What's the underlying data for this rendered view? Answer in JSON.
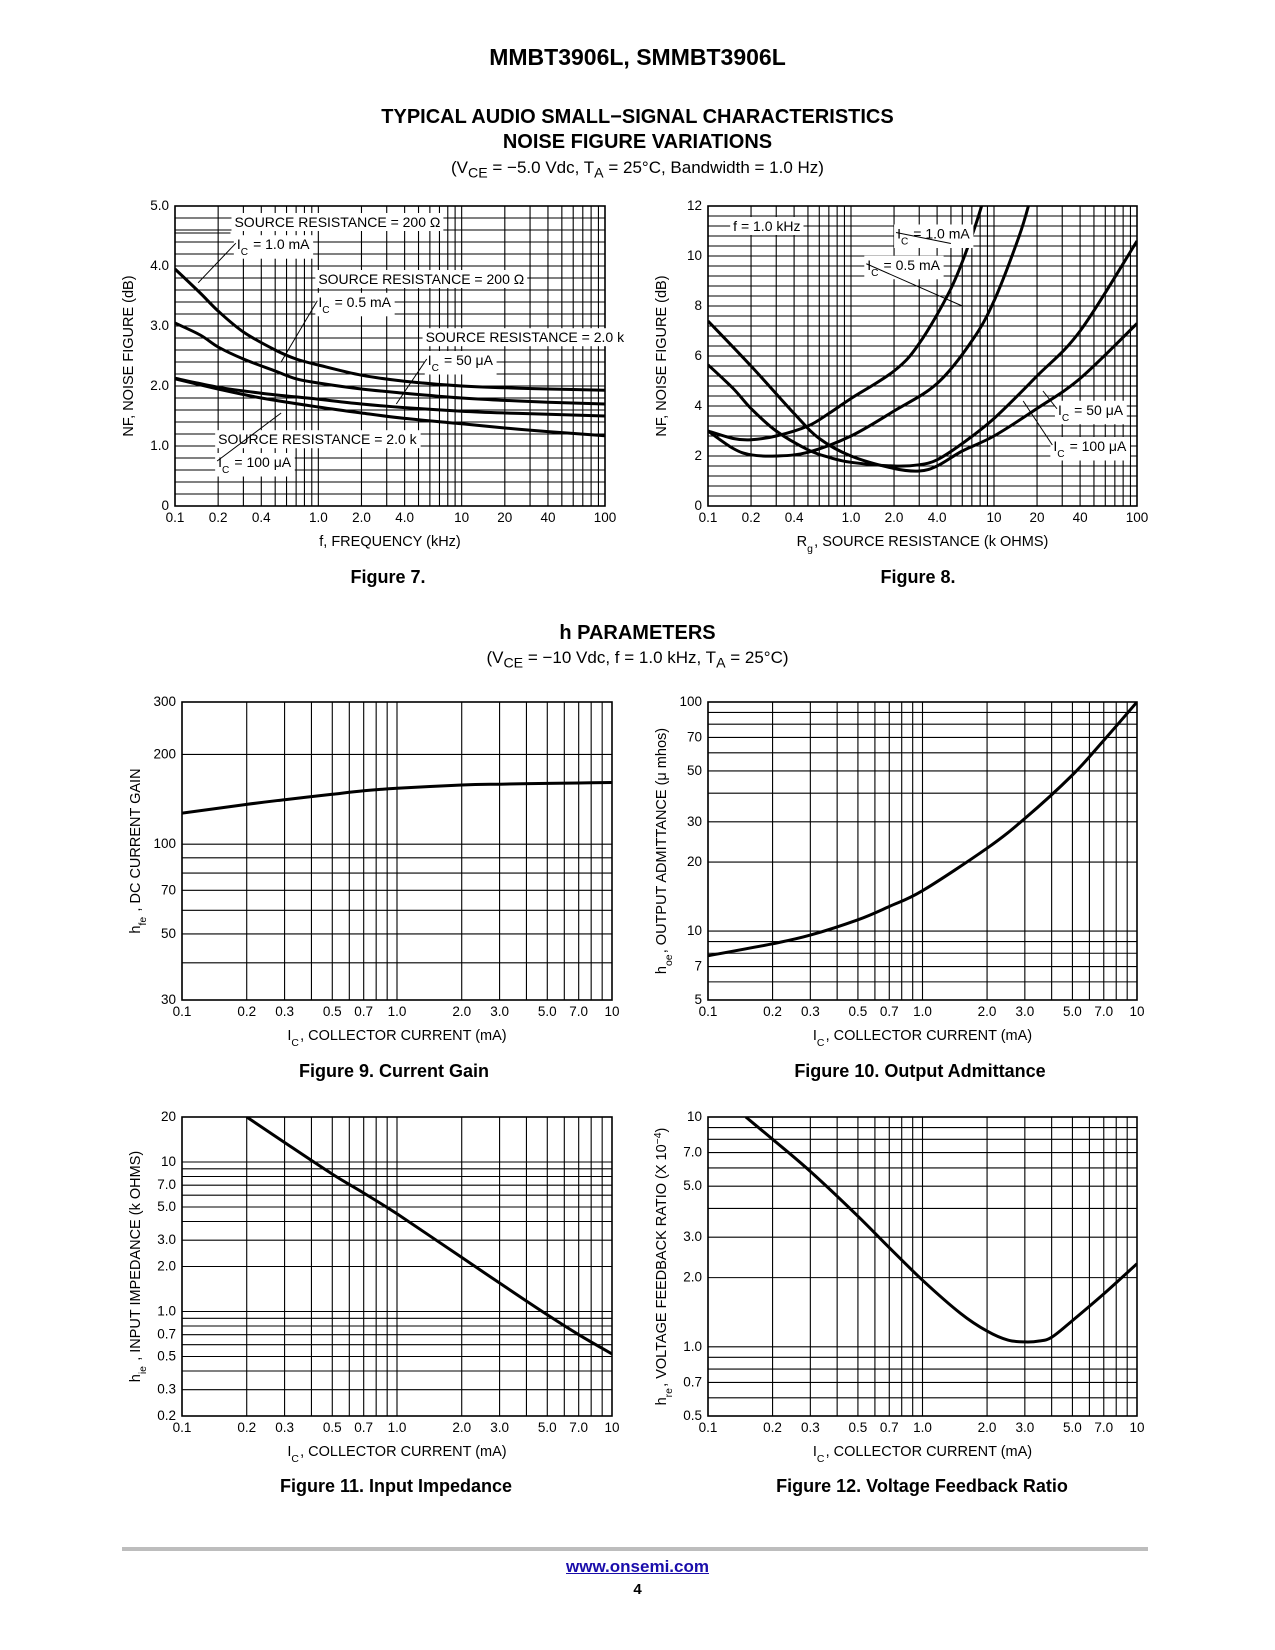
{
  "header": {
    "title": "MMBT3906L, SMMBT3906L"
  },
  "section1": {
    "title_line1": "TYPICAL AUDIO SMALL−SIGNAL CHARACTERISTICS",
    "title_line2": "NOISE FIGURE VARIATIONS",
    "cond_pre": "(V",
    "cond_sub1": "CE",
    "cond_mid": " = −5.0 Vdc, T",
    "cond_sub2": "A",
    "cond_post": " = 25°C, Bandwidth = 1.0 Hz)"
  },
  "section2": {
    "title": "h PARAMETERS",
    "cond_pre": "(V",
    "cond_sub1": "CE",
    "cond_mid": " = −10 Vdc, f = 1.0 kHz, T",
    "cond_sub2": "A",
    "cond_post": " = 25°C)"
  },
  "chart_data": [
    {
      "id": "fig7",
      "caption": "Figure 7.",
      "type": "line",
      "xscale": "log",
      "yscale": "linear",
      "xlim": [
        0.1,
        100
      ],
      "ylim": [
        0,
        5
      ],
      "xticks": [
        0.1,
        0.2,
        0.4,
        1,
        2,
        4,
        10,
        20,
        40,
        100
      ],
      "xtick_labels": [
        "0.1",
        "0.2",
        "0.4",
        "1.0",
        "2.0",
        "4.0",
        "10",
        "20",
        "40",
        "100"
      ],
      "yticks": [
        0,
        1,
        2,
        3,
        4,
        5
      ],
      "ytick_labels": [
        "0",
        "1.0",
        "2.0",
        "3.0",
        "4.0",
        "5.0"
      ],
      "xlabel": {
        "main": "f, FREQUENCY (kHz)"
      },
      "ylabel": {
        "main": "NF, NOISE FIGURE (dB)"
      },
      "grid": true,
      "series": [
        {
          "x": [
            0.1,
            0.15,
            0.2,
            0.3,
            0.5,
            0.7,
            1,
            2,
            4,
            10,
            20,
            40,
            100
          ],
          "y": [
            3.95,
            3.55,
            3.25,
            2.9,
            2.6,
            2.45,
            2.35,
            2.18,
            2.08,
            2.0,
            1.97,
            1.95,
            1.93
          ]
        },
        {
          "x": [
            0.1,
            0.15,
            0.2,
            0.3,
            0.5,
            0.7,
            1,
            2,
            4,
            10,
            20,
            40,
            100
          ],
          "y": [
            3.05,
            2.85,
            2.65,
            2.45,
            2.25,
            2.12,
            2.05,
            1.95,
            1.88,
            1.8,
            1.76,
            1.73,
            1.7
          ]
        },
        {
          "x": [
            0.1,
            0.2,
            0.4,
            1,
            2,
            4,
            10,
            20,
            40,
            100
          ],
          "y": [
            2.13,
            1.98,
            1.88,
            1.78,
            1.7,
            1.64,
            1.58,
            1.55,
            1.53,
            1.5
          ]
        },
        {
          "x": [
            0.1,
            0.2,
            0.4,
            1,
            2,
            4,
            10,
            20,
            40,
            100
          ],
          "y": [
            2.12,
            1.95,
            1.8,
            1.65,
            1.55,
            1.46,
            1.37,
            1.3,
            1.24,
            1.17
          ]
        }
      ],
      "annotations": [
        {
          "pre": "SOURCE RESISTANCE = 200 Ω",
          "lx": 0.26,
          "ly": 4.65,
          "sx": 0.17,
          "sy": 4.55
        },
        {
          "pre": "I",
          "sub": "C",
          "post": " = 1.0 mA",
          "lx": 0.27,
          "ly": 4.28,
          "tx": 0.145,
          "ty": 3.72
        },
        {
          "pre": "SOURCE RESISTANCE = 200 Ω",
          "lx": 1.0,
          "ly": 3.7
        },
        {
          "pre": "I",
          "sub": "C",
          "post": " = 0.5 mA",
          "lx": 1.0,
          "ly": 3.32,
          "tx": 0.55,
          "ty": 2.4
        },
        {
          "pre": "SOURCE RESISTANCE = 2.0 k",
          "lx": 5.6,
          "ly": 2.73
        },
        {
          "pre": "I",
          "sub": "C",
          "post": " = 50 μA",
          "lx": 5.8,
          "ly": 2.35,
          "tx": 3.5,
          "ty": 1.7
        },
        {
          "pre": "SOURCE RESISTANCE = 2.0 k",
          "lx": 0.2,
          "ly": 1.03
        },
        {
          "pre": "I",
          "sub": "C",
          "post": " = 100 μA",
          "lx": 0.2,
          "ly": 0.65,
          "tx": 0.55,
          "ty": 1.55
        }
      ]
    },
    {
      "id": "fig8",
      "caption": "Figure 8.",
      "type": "line",
      "xscale": "log",
      "yscale": "linear",
      "xlim": [
        0.1,
        100
      ],
      "ylim": [
        0,
        12
      ],
      "xticks": [
        0.1,
        0.2,
        0.4,
        1,
        2,
        4,
        10,
        20,
        40,
        100
      ],
      "xtick_labels": [
        "0.1",
        "0.2",
        "0.4",
        "1.0",
        "2.0",
        "4.0",
        "10",
        "20",
        "40",
        "100"
      ],
      "yticks": [
        0,
        2,
        4,
        6,
        8,
        10,
        12
      ],
      "ytick_labels": [
        "0",
        "2",
        "4",
        "6",
        "8",
        "10",
        "12"
      ],
      "xlabel": {
        "main": "R",
        "sub": "g",
        "post": ", SOURCE RESISTANCE (k OHMS)"
      },
      "ylabel": {
        "main": "NF, NOISE FIGURE (dB)"
      },
      "grid": true,
      "series": [
        {
          "x": [
            0.1,
            0.15,
            0.2,
            0.3,
            0.5,
            0.7,
            1,
            2,
            3,
            5,
            7,
            8.5
          ],
          "y": [
            3.0,
            2.7,
            2.65,
            2.8,
            3.2,
            3.7,
            4.3,
            5.4,
            6.5,
            8.7,
            10.8,
            12.3
          ]
        },
        {
          "x": [
            0.1,
            0.15,
            0.2,
            0.3,
            0.5,
            1,
            2,
            4,
            7,
            10,
            15,
            18
          ],
          "y": [
            3.0,
            2.3,
            2.05,
            2.0,
            2.15,
            2.8,
            3.8,
            4.9,
            6.6,
            8.2,
            10.8,
            12.3
          ]
        },
        {
          "x": [
            0.1,
            0.15,
            0.2,
            0.3,
            0.5,
            0.7,
            1,
            2,
            3,
            4,
            6,
            10,
            20,
            40,
            100
          ],
          "y": [
            5.65,
            4.7,
            3.9,
            3.0,
            2.25,
            1.95,
            1.75,
            1.6,
            1.65,
            1.85,
            2.5,
            3.5,
            5.2,
            7.0,
            10.6
          ]
        },
        {
          "x": [
            0.1,
            0.2,
            0.4,
            0.6,
            1,
            2,
            3,
            4,
            6,
            10,
            20,
            40,
            100
          ],
          "y": [
            7.4,
            5.6,
            3.7,
            2.7,
            2.0,
            1.5,
            1.4,
            1.6,
            2.2,
            2.8,
            3.9,
            5.1,
            7.3
          ]
        }
      ],
      "annotations": [
        {
          "pre": "f = 1.0 kHz",
          "lx": 0.15,
          "ly": 11.0
        },
        {
          "pre": "I",
          "sub": "C",
          "post": " = 1.0 mA",
          "lx": 2.1,
          "ly": 10.7,
          "tx": 5.0,
          "ty": 10.5
        },
        {
          "pre": "I",
          "sub": "C",
          "post": " = 0.5 mA",
          "lx": 1.3,
          "ly": 9.45,
          "tx": 6.0,
          "ty": 8.0
        },
        {
          "pre": "I",
          "sub": "C",
          "post": " = 50 μA",
          "lx": 28,
          "ly": 3.65,
          "tx": 22,
          "ty": 4.6
        },
        {
          "pre": "I",
          "sub": "C",
          "post": " = 100 μA",
          "lx": 26,
          "ly": 2.2,
          "tx": 16,
          "ty": 4.2
        }
      ]
    },
    {
      "id": "fig9",
      "caption": "Figure 9. Current Gain",
      "type": "line",
      "xscale": "log",
      "yscale": "log",
      "xlim": [
        0.1,
        10
      ],
      "ylim": [
        30,
        300
      ],
      "xticks": [
        0.1,
        0.2,
        0.3,
        0.5,
        0.7,
        1,
        2,
        3,
        5,
        7,
        10
      ],
      "xtick_labels": [
        "0.1",
        "0.2",
        "0.3",
        "0.5",
        "0.7",
        "1.0",
        "2.0",
        "3.0",
        "5.0",
        "7.0",
        "10"
      ],
      "yticks": [
        30,
        50,
        70,
        100,
        200,
        300
      ],
      "ytick_labels": [
        "30",
        "50",
        "70",
        "100",
        "200",
        "300"
      ],
      "ygrid_minor": [
        40,
        60,
        80,
        90
      ],
      "xlabel": {
        "main": "I",
        "sub": "C",
        "post": ", COLLECTOR CURRENT (mA)"
      },
      "ylabel": {
        "main": "h",
        "sub": "fe",
        "post": " , DC CURRENT GAIN"
      },
      "grid": true,
      "series": [
        {
          "x": [
            0.1,
            0.2,
            0.3,
            0.5,
            0.7,
            1,
            2,
            3,
            5,
            7,
            10
          ],
          "y": [
            127,
            136,
            141,
            147,
            151,
            154,
            158,
            159,
            160,
            160.5,
            161
          ]
        }
      ]
    },
    {
      "id": "fig10",
      "caption": "Figure 10. Output Admittance",
      "type": "line",
      "xscale": "log",
      "yscale": "log",
      "xlim": [
        0.1,
        10
      ],
      "ylim": [
        5,
        100
      ],
      "xticks": [
        0.1,
        0.2,
        0.3,
        0.5,
        0.7,
        1,
        2,
        3,
        5,
        7,
        10
      ],
      "xtick_labels": [
        "0.1",
        "0.2",
        "0.3",
        "0.5",
        "0.7",
        "1.0",
        "2.0",
        "3.0",
        "5.0",
        "7.0",
        "10"
      ],
      "yticks": [
        5,
        7,
        10,
        20,
        30,
        50,
        70,
        100
      ],
      "ytick_labels": [
        "5",
        "7",
        "10",
        "20",
        "30",
        "50",
        "70",
        "100"
      ],
      "ygrid_minor": [
        6,
        8,
        9,
        40,
        60,
        80,
        90
      ],
      "xlabel": {
        "main": "I",
        "sub": "C",
        "post": ", COLLECTOR CURRENT (mA)"
      },
      "ylabel": {
        "main": "h",
        "sub": "oe",
        "post": ", OUTPUT ADMITTANCE (μ mhos)"
      },
      "grid": true,
      "series": [
        {
          "x": [
            0.1,
            0.2,
            0.3,
            0.5,
            0.7,
            1,
            2,
            3,
            5,
            7,
            10
          ],
          "y": [
            7.8,
            8.8,
            9.6,
            11.2,
            12.8,
            15.0,
            23,
            31,
            48,
            68,
            100
          ]
        }
      ]
    },
    {
      "id": "fig11",
      "caption": "Figure 11. Input Impedance",
      "type": "line",
      "xscale": "log",
      "yscale": "log",
      "xlim": [
        0.1,
        10
      ],
      "ylim": [
        0.2,
        20
      ],
      "xticks": [
        0.1,
        0.2,
        0.3,
        0.5,
        0.7,
        1,
        2,
        3,
        5,
        7,
        10
      ],
      "xtick_labels": [
        "0.1",
        "0.2",
        "0.3",
        "0.5",
        "0.7",
        "1.0",
        "2.0",
        "3.0",
        "5.0",
        "7.0",
        "10"
      ],
      "yticks": [
        0.2,
        0.3,
        0.5,
        0.7,
        1,
        2,
        3,
        5,
        7,
        10,
        20
      ],
      "ytick_labels": [
        "0.2",
        "0.3",
        "0.5",
        "0.7",
        "1.0",
        "2.0",
        "3.0",
        "5.0",
        "7.0",
        "10",
        "20"
      ],
      "ygrid_minor": [
        0.4,
        0.6,
        0.8,
        0.9,
        4,
        6,
        8,
        9
      ],
      "xlabel": {
        "main": "I",
        "sub": "C",
        "post": ", COLLECTOR CURRENT (mA)"
      },
      "ylabel": {
        "main": "h",
        "sub": "ie",
        "post": " , INPUT IMPEDANCE (k OHMS)"
      },
      "grid": true,
      "series": [
        {
          "x": [
            0.2,
            0.3,
            0.5,
            0.7,
            1,
            2,
            3,
            5,
            7,
            10
          ],
          "y": [
            20,
            13.5,
            8.3,
            6.2,
            4.5,
            2.3,
            1.55,
            0.95,
            0.7,
            0.52
          ]
        }
      ]
    },
    {
      "id": "fig12",
      "caption": "Figure 12. Voltage Feedback Ratio",
      "type": "line",
      "xscale": "log",
      "yscale": "log",
      "xlim": [
        0.1,
        10
      ],
      "ylim": [
        0.5,
        10
      ],
      "xticks": [
        0.1,
        0.2,
        0.3,
        0.5,
        0.7,
        1,
        2,
        3,
        5,
        7,
        10
      ],
      "xtick_labels": [
        "0.1",
        "0.2",
        "0.3",
        "0.5",
        "0.7",
        "1.0",
        "2.0",
        "3.0",
        "5.0",
        "7.0",
        "10"
      ],
      "yticks": [
        0.5,
        0.7,
        1,
        2,
        3,
        5,
        7,
        10
      ],
      "ytick_labels": [
        "0.5",
        "0.7",
        "1.0",
        "2.0",
        "3.0",
        "5.0",
        "7.0",
        "10"
      ],
      "ygrid_minor": [
        0.6,
        0.8,
        0.9,
        4,
        6,
        8,
        9
      ],
      "xlabel": {
        "main": "I",
        "sub": "C",
        "post": ", COLLECTOR CURRENT (mA)"
      },
      "ylabel": {
        "main": "h",
        "sub": "re",
        "post": ", VOLTAGE FEEDBACK RATIO (X 10",
        "sup": "−4",
        "post2": ")"
      },
      "grid": true,
      "series": [
        {
          "x": [
            0.15,
            0.2,
            0.3,
            0.5,
            0.7,
            1,
            1.5,
            2,
            2.5,
            3,
            3.5,
            4,
            5,
            7,
            10
          ],
          "y": [
            10,
            8.0,
            5.8,
            3.7,
            2.7,
            1.95,
            1.4,
            1.17,
            1.07,
            1.05,
            1.06,
            1.1,
            1.3,
            1.7,
            2.3
          ]
        }
      ]
    }
  ],
  "footer": {
    "link": "www.onsemi.com",
    "page": "4"
  }
}
